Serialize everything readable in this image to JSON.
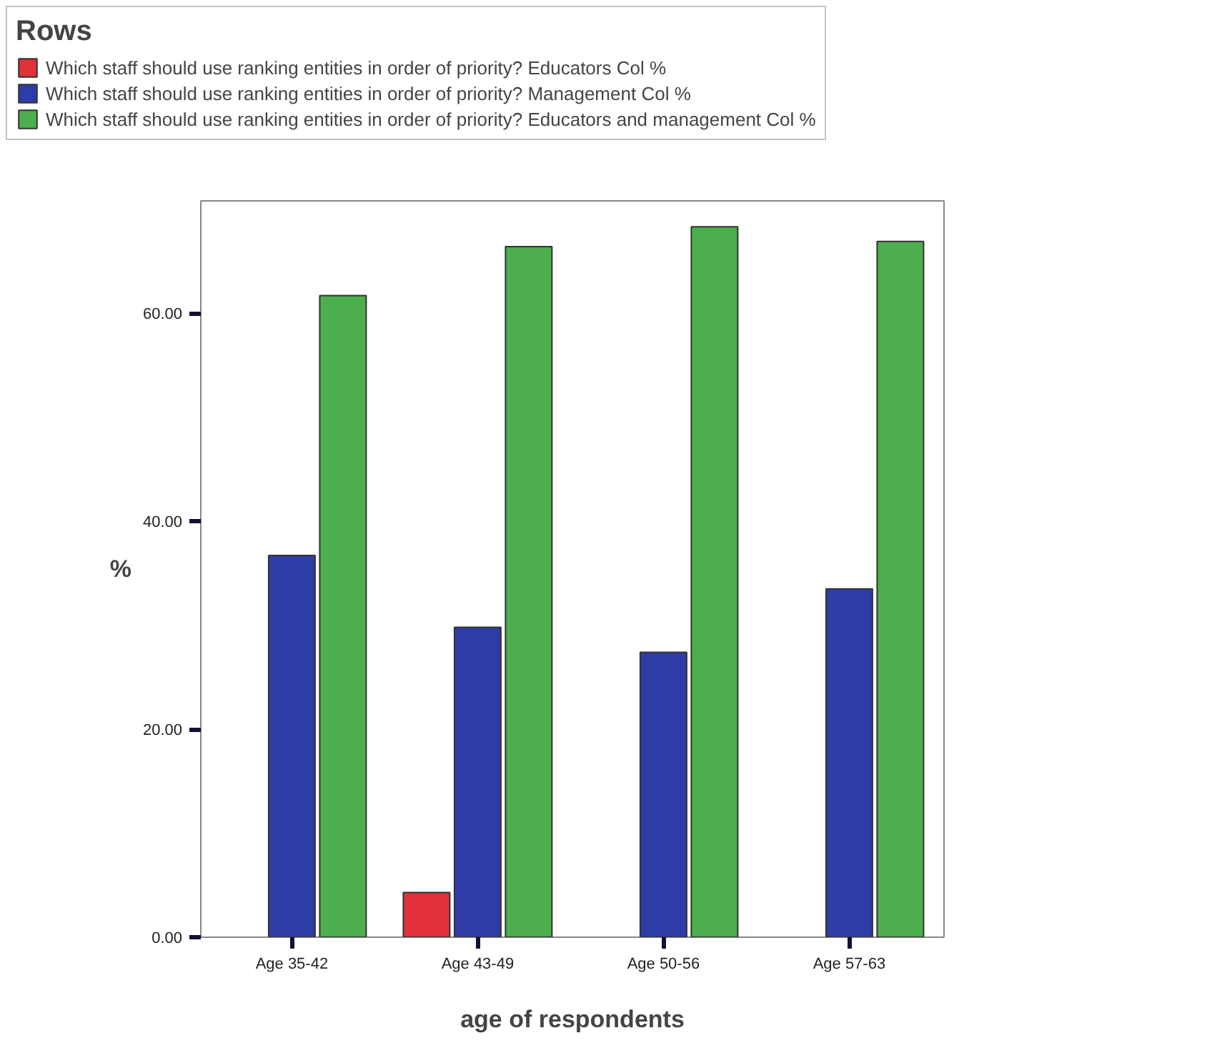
{
  "chart_data": {
    "type": "bar",
    "xlabel": "age of respondents",
    "ylabel": "%",
    "legend_title": "Rows",
    "categories": [
      "Age 35-42",
      "Age 43-49",
      "Age 50-56",
      "Age 57-63"
    ],
    "series": [
      {
        "name": "Which staff should use ranking entities in order of priority? Educators Col %",
        "color": "#e0303a",
        "values": [
          null,
          4.3,
          null,
          null
        ]
      },
      {
        "name": "Which staff should use ranking entities in order of priority? Management Col %",
        "color": "#2e3ca8",
        "values": [
          36.7,
          29.8,
          27.4,
          33.5
        ]
      },
      {
        "name": "Which staff should use ranking entities in order of priority? Educators and management Col %",
        "color": "#4cae4c",
        "values": [
          61.7,
          66.4,
          68.3,
          66.9
        ]
      }
    ],
    "ylim": [
      0,
      70.8
    ],
    "yticks": [
      {
        "value": 0,
        "label": "0.00"
      },
      {
        "value": 20,
        "label": "20.00"
      },
      {
        "value": 40,
        "label": "40.00"
      },
      {
        "value": 60,
        "label": "60.00"
      }
    ],
    "grid": false,
    "legend": "top"
  }
}
